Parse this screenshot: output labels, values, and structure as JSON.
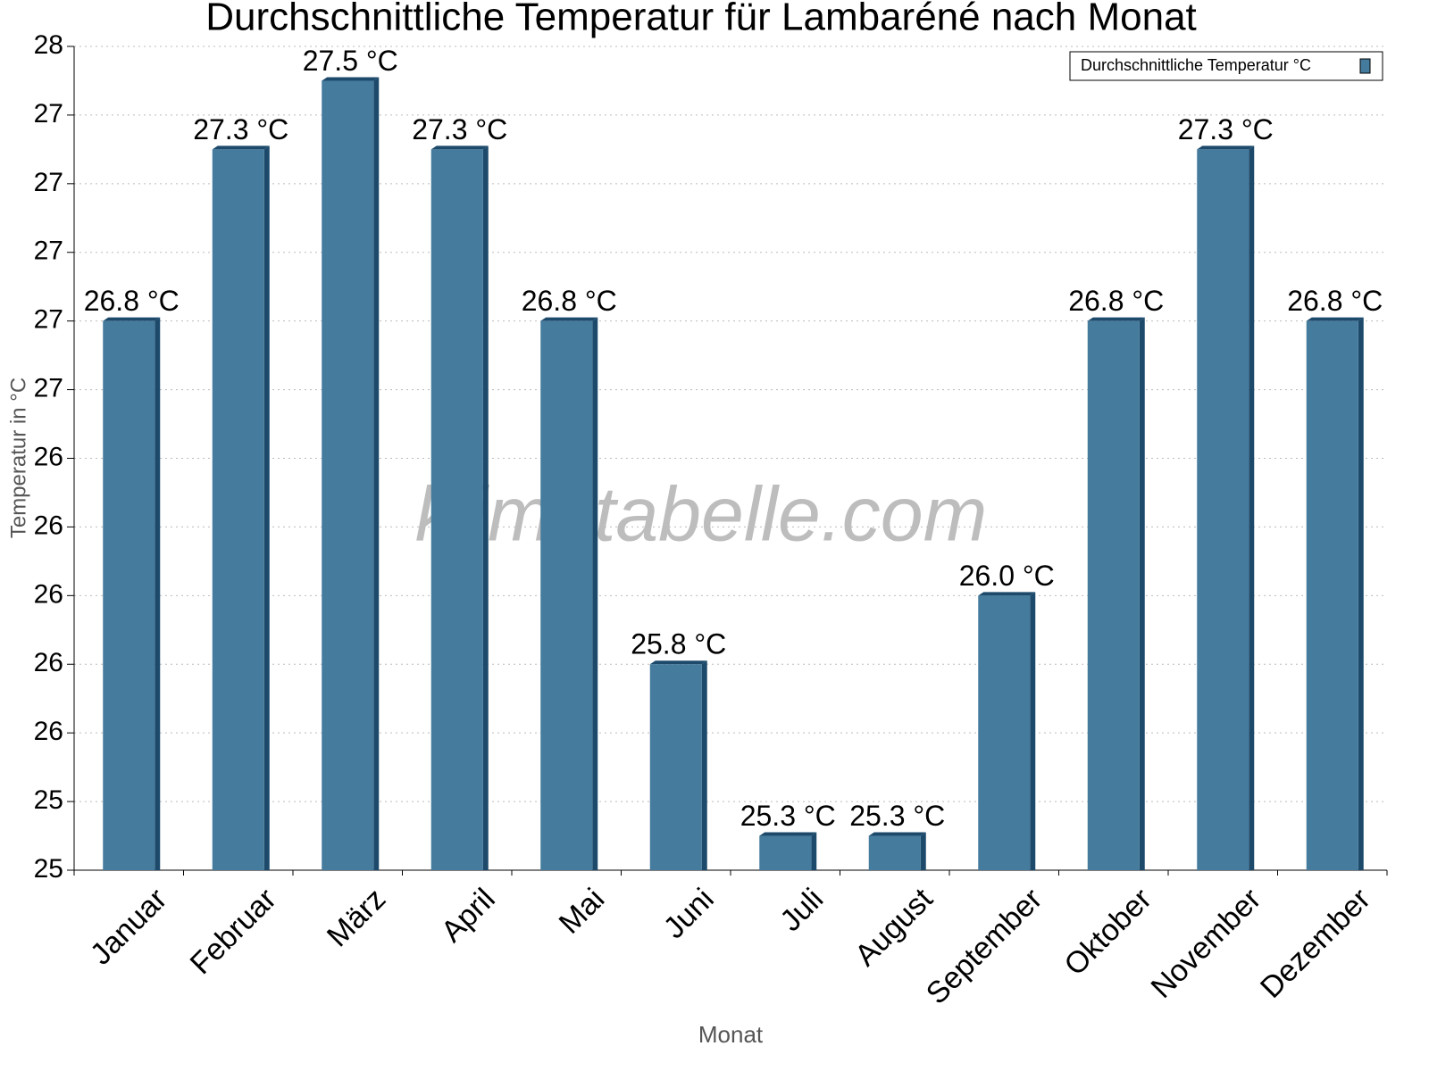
{
  "chart_data": {
    "type": "bar",
    "title": "Durchschnittliche Temperatur für Lambaréné nach Monat",
    "x_label": "Monat",
    "y_label": "Temperatur in °C",
    "watermark": "klimatabelle.com",
    "categories": [
      "Januar",
      "Februar",
      "März",
      "April",
      "Mai",
      "Juni",
      "Juli",
      "August",
      "September",
      "Oktober",
      "November",
      "Dezember"
    ],
    "series": [
      {
        "name": "Durchschnittliche Temperatur °C",
        "color": "#457b9d",
        "values": [
          26.8,
          27.3,
          27.5,
          27.3,
          26.8,
          25.8,
          25.3,
          25.3,
          26.0,
          26.8,
          27.3,
          26.8
        ],
        "value_labels": [
          "26.8 °C",
          "27.3 °C",
          "27.5 °C",
          "27.3 °C",
          "26.8 °C",
          "25.8 °C",
          "25.3 °C",
          "25.3 °C",
          "26.0 °C",
          "26.8 °C",
          "27.3 °C",
          "26.8 °C"
        ]
      }
    ],
    "ylim": [
      25.2,
      27.6
    ],
    "yticks": [
      {
        "value": 25.2,
        "label": "25"
      },
      {
        "value": 25.4,
        "label": "25"
      },
      {
        "value": 25.6,
        "label": "26"
      },
      {
        "value": 25.8,
        "label": "26"
      },
      {
        "value": 26.0,
        "label": "26"
      },
      {
        "value": 26.2,
        "label": "26"
      },
      {
        "value": 26.4,
        "label": "26"
      },
      {
        "value": 26.6,
        "label": "27"
      },
      {
        "value": 26.8,
        "label": "27"
      },
      {
        "value": 27.0,
        "label": "27"
      },
      {
        "value": 27.2,
        "label": "27"
      },
      {
        "value": 27.4,
        "label": "27"
      },
      {
        "value": 27.6,
        "label": "28"
      }
    ],
    "grid": true,
    "legend": "top-right"
  }
}
